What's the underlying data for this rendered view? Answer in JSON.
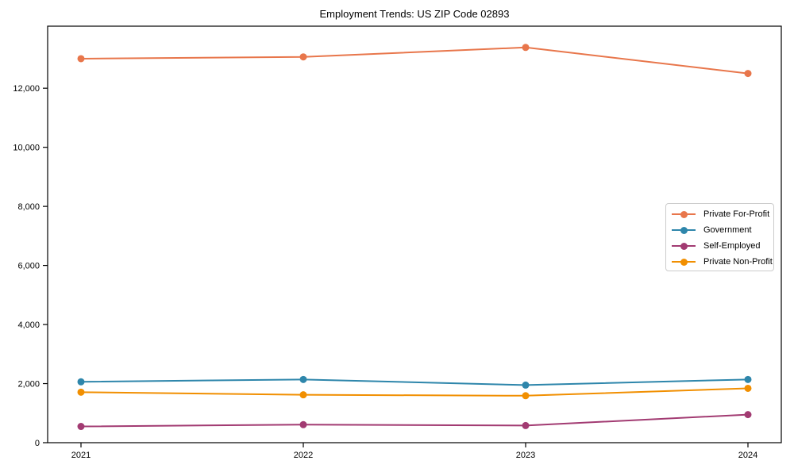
{
  "figure": {
    "background": "#ffffff",
    "text_color": "#000000",
    "axis_color": "#000000"
  },
  "chart_data": {
    "type": "line",
    "title": "Employment Trends: US ZIP Code 02893",
    "categories": [
      "2021",
      "2022",
      "2023",
      "2024"
    ],
    "x": [
      2021,
      2022,
      2023,
      2024
    ],
    "series": [
      {
        "name": "Private For-Profit",
        "color": "#E8764B",
        "values": [
          13000,
          13060,
          13380,
          12500
        ]
      },
      {
        "name": "Government",
        "color": "#2E86AB",
        "values": [
          2060,
          2140,
          1950,
          2140
        ]
      },
      {
        "name": "Self-Employed",
        "color": "#A23B72",
        "values": [
          550,
          610,
          580,
          950
        ]
      },
      {
        "name": "Private Non-Profit",
        "color": "#F18F01",
        "values": [
          1710,
          1620,
          1590,
          1840
        ]
      }
    ],
    "yticks": [
      0,
      2000,
      4000,
      6000,
      8000,
      10000,
      12000
    ],
    "ytick_labels": [
      "0",
      "2,000",
      "4,000",
      "6,000",
      "8,000",
      "10,000",
      "12,000"
    ],
    "xlim": [
      2020.85,
      2024.15
    ],
    "ylim": [
      0,
      14100
    ],
    "xlabel": "",
    "ylabel": "",
    "grid": false,
    "marker": "circle",
    "legend_position": "center-right-inside"
  }
}
